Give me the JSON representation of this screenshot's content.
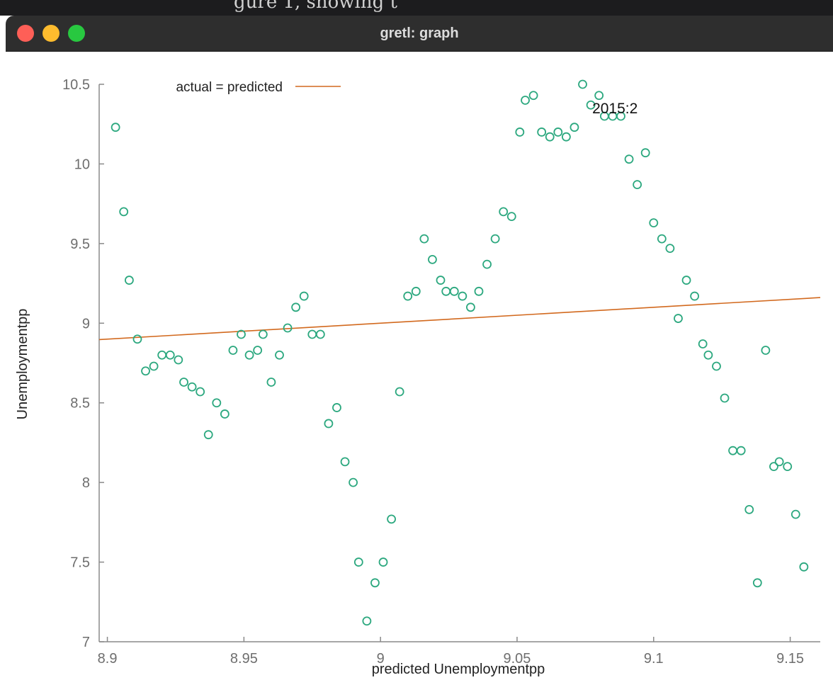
{
  "window": {
    "title": "gretl: graph",
    "behind_caption": "gure 1, showing t"
  },
  "colors": {
    "points": "#2ca87f",
    "fit_line": "#d2691e",
    "axis": "#8a8a8a",
    "tick_text": "#6e6e6e",
    "title_bar": "#2e2e2e"
  },
  "chart_data": {
    "type": "scatter",
    "title": "",
    "xlabel": "predicted Unemploymentpp",
    "ylabel": "Unemploymentpp",
    "xlim": [
      8.897,
      9.161
    ],
    "ylim": [
      7,
      10.5
    ],
    "xticks": [
      8.9,
      8.95,
      9,
      9.05,
      9.1,
      9.15
    ],
    "yticks": [
      7,
      7.5,
      8,
      8.5,
      9,
      9.5,
      10,
      10.5
    ],
    "xtick_labels": [
      "8.9",
      "8.95",
      "9",
      "9.05",
      "9.1",
      "9.15"
    ],
    "ytick_labels": [
      "7",
      "7.5",
      "8",
      "8.5",
      "9",
      "9.5",
      "10",
      "10.5"
    ],
    "grid": false,
    "legend": {
      "placement": "top-left",
      "entries": [
        {
          "label": "actual = predicted",
          "kind": "line"
        }
      ]
    },
    "annotations": [
      {
        "text": "2015:2",
        "x": 9.077,
        "y": 10.37
      }
    ],
    "series": [
      {
        "name": "actual = predicted",
        "kind": "line",
        "x": [
          8.897,
          9.161
        ],
        "y": [
          8.897,
          9.161
        ]
      },
      {
        "kind": "points",
        "points": [
          [
            8.903,
            10.23
          ],
          [
            8.906,
            9.7
          ],
          [
            8.908,
            9.27
          ],
          [
            8.911,
            8.9
          ],
          [
            8.914,
            8.7
          ],
          [
            8.917,
            8.73
          ],
          [
            8.92,
            8.8
          ],
          [
            8.923,
            8.8
          ],
          [
            8.926,
            8.77
          ],
          [
            8.928,
            8.63
          ],
          [
            8.931,
            8.6
          ],
          [
            8.934,
            8.57
          ],
          [
            8.937,
            8.3
          ],
          [
            8.94,
            8.5
          ],
          [
            8.943,
            8.43
          ],
          [
            8.946,
            8.83
          ],
          [
            8.949,
            8.93
          ],
          [
            8.952,
            8.8
          ],
          [
            8.955,
            8.83
          ],
          [
            8.957,
            8.93
          ],
          [
            8.96,
            8.63
          ],
          [
            8.963,
            8.8
          ],
          [
            8.966,
            8.97
          ],
          [
            8.969,
            9.1
          ],
          [
            8.972,
            9.17
          ],
          [
            8.975,
            8.93
          ],
          [
            8.978,
            8.93
          ],
          [
            8.981,
            8.37
          ],
          [
            8.984,
            8.47
          ],
          [
            8.987,
            8.13
          ],
          [
            8.99,
            8.0
          ],
          [
            8.992,
            7.5
          ],
          [
            8.995,
            7.13
          ],
          [
            8.998,
            7.37
          ],
          [
            9.001,
            7.5
          ],
          [
            9.004,
            7.77
          ],
          [
            9.007,
            8.57
          ],
          [
            9.01,
            9.17
          ],
          [
            9.013,
            9.2
          ],
          [
            9.016,
            9.53
          ],
          [
            9.019,
            9.4
          ],
          [
            9.022,
            9.27
          ],
          [
            9.024,
            9.2
          ],
          [
            9.027,
            9.2
          ],
          [
            9.03,
            9.17
          ],
          [
            9.033,
            9.1
          ],
          [
            9.036,
            9.2
          ],
          [
            9.039,
            9.37
          ],
          [
            9.042,
            9.53
          ],
          [
            9.045,
            9.7
          ],
          [
            9.048,
            9.67
          ],
          [
            9.051,
            10.2
          ],
          [
            9.053,
            10.4
          ],
          [
            9.056,
            10.43
          ],
          [
            9.059,
            10.2
          ],
          [
            9.062,
            10.17
          ],
          [
            9.065,
            10.2
          ],
          [
            9.068,
            10.17
          ],
          [
            9.071,
            10.23
          ],
          [
            9.074,
            10.5
          ],
          [
            9.077,
            10.37
          ],
          [
            9.08,
            10.43
          ],
          [
            9.082,
            10.3
          ],
          [
            9.085,
            10.3
          ],
          [
            9.088,
            10.3
          ],
          [
            9.091,
            10.03
          ],
          [
            9.094,
            9.87
          ],
          [
            9.097,
            10.07
          ],
          [
            9.1,
            9.63
          ],
          [
            9.103,
            9.53
          ],
          [
            9.106,
            9.47
          ],
          [
            9.109,
            9.03
          ],
          [
            9.112,
            9.27
          ],
          [
            9.115,
            9.17
          ],
          [
            9.118,
            8.87
          ],
          [
            9.12,
            8.8
          ],
          [
            9.123,
            8.73
          ],
          [
            9.126,
            8.53
          ],
          [
            9.129,
            8.2
          ],
          [
            9.132,
            8.2
          ],
          [
            9.135,
            7.83
          ],
          [
            9.138,
            7.37
          ],
          [
            9.141,
            8.83
          ],
          [
            9.144,
            8.1
          ],
          [
            9.146,
            8.13
          ],
          [
            9.149,
            8.1
          ],
          [
            9.152,
            7.8
          ],
          [
            9.155,
            7.47
          ]
        ]
      }
    ]
  }
}
